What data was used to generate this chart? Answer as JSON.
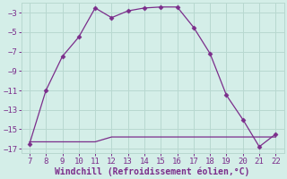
{
  "x": [
    7,
    8,
    9,
    10,
    11,
    12,
    13,
    14,
    15,
    16,
    17,
    18,
    19,
    20,
    21,
    22
  ],
  "y_main": [
    -16.5,
    -11.0,
    -7.5,
    -5.5,
    -2.5,
    -3.5,
    -2.8,
    -2.5,
    -2.4,
    -2.4,
    -4.5,
    -7.2,
    -11.5,
    -14.0,
    -16.8,
    -15.5
  ],
  "y_flat": [
    -16.3,
    -16.3,
    -16.3,
    -16.3,
    -16.3,
    -15.8,
    -15.8,
    -15.8,
    -15.8,
    -15.8,
    -15.8,
    -15.8,
    -15.8,
    -15.8,
    -15.8,
    -15.8
  ],
  "line_color": "#7b2d8b",
  "marker": "D",
  "markersize": 2.5,
  "background_color": "#d4eee8",
  "grid_color": "#b8d8d0",
  "xlabel": "Windchill (Refroidissement éolien,°C)",
  "xlabel_color": "#7b2d8b",
  "tick_color": "#7b2d8b",
  "xlim": [
    6.5,
    22.5
  ],
  "ylim": [
    -17.5,
    -2.0
  ],
  "yticks": [
    -3,
    -5,
    -7,
    -9,
    -11,
    -13,
    -15,
    -17
  ],
  "xticks": [
    7,
    8,
    9,
    10,
    11,
    12,
    13,
    14,
    15,
    16,
    17,
    18,
    19,
    20,
    21,
    22
  ],
  "tick_fontsize": 6.5,
  "xlabel_fontsize": 7.0
}
